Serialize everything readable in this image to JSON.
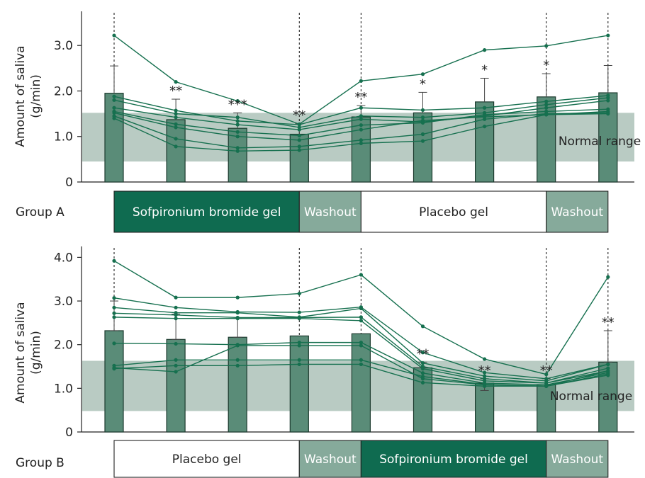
{
  "colors": {
    "bar_fill": "#5a8c78",
    "bar_stroke": "#1c3a2e",
    "line": "#16704f",
    "normal_band": "#b9cbc3",
    "sofpironium_box": "#0f6b50",
    "washout_box": "#86aa9b",
    "placebo_box": "#ffffff",
    "axis": "#222222"
  },
  "chart_data": [
    {
      "type": "bar",
      "group": "Group A",
      "ylabel": "Amount of saliva (g/min)",
      "ylabel_lines": [
        "Amount of saliva",
        "(g/min)"
      ],
      "yticks": [
        0,
        1.0,
        2.0,
        3.0
      ],
      "ytick_labels": [
        "0",
        "1.0",
        "2.0",
        "3.0"
      ],
      "ylim": [
        0,
        3.75
      ],
      "timepoints": 9,
      "vlines": [
        0,
        3,
        4,
        7
      ],
      "normal_range": {
        "low": 0.45,
        "high": 1.52,
        "label": "Normal range"
      },
      "bars": [
        1.95,
        1.37,
        1.18,
        1.05,
        1.43,
        1.52,
        1.76,
        1.87,
        1.96
      ],
      "error_upper": [
        2.55,
        1.82,
        1.52,
        1.28,
        1.68,
        1.97,
        2.28,
        2.38,
        2.56
      ],
      "significance": [
        "",
        "**",
        "***",
        "**",
        "**",
        "*",
        "*",
        "*",
        ""
      ],
      "series": [
        {
          "values": [
            3.22,
            2.2,
            1.78,
            1.27,
            2.22,
            2.37,
            2.9,
            2.99,
            3.22
          ]
        },
        {
          "values": [
            1.88,
            1.57,
            1.34,
            1.26,
            1.63,
            1.58,
            1.63,
            1.77,
            1.9
          ]
        },
        {
          "values": [
            1.8,
            1.5,
            1.42,
            1.2,
            1.45,
            1.42,
            1.52,
            1.7,
            1.85
          ]
        },
        {
          "values": [
            1.63,
            1.42,
            1.26,
            1.15,
            1.38,
            1.32,
            1.45,
            1.63,
            1.79
          ]
        },
        {
          "values": [
            1.55,
            1.27,
            1.1,
            1.02,
            1.25,
            1.3,
            1.48,
            1.55,
            1.6
          ]
        },
        {
          "values": [
            1.52,
            1.2,
            1.0,
            0.92,
            1.15,
            1.35,
            1.43,
            1.48,
            1.55
          ]
        },
        {
          "values": [
            1.45,
            0.95,
            0.75,
            0.78,
            0.92,
            1.05,
            1.38,
            1.5,
            1.52
          ]
        },
        {
          "values": [
            1.4,
            0.78,
            0.68,
            0.7,
            0.85,
            0.9,
            1.22,
            1.48,
            1.5
          ]
        }
      ],
      "phases": [
        {
          "label": "Sofpironium bromide gel",
          "kind": "sofpironium",
          "from": 0,
          "to": 3
        },
        {
          "label": "Washout",
          "kind": "washout",
          "from": 3,
          "to": 4
        },
        {
          "label": "Placebo gel",
          "kind": "placebo",
          "from": 4,
          "to": 7
        },
        {
          "label": "Washout",
          "kind": "washout",
          "from": 7,
          "to": 8
        }
      ]
    },
    {
      "type": "bar",
      "group": "Group B",
      "ylabel": "Amount of saliva (g/min)",
      "ylabel_lines": [
        "Amount of saliva",
        "(g/min)"
      ],
      "yticks": [
        0,
        1.0,
        2.0,
        3.0,
        4.0
      ],
      "ytick_labels": [
        "0",
        "1.0",
        "2.0",
        "3.0",
        "4.0"
      ],
      "ylim": [
        0,
        4.25
      ],
      "timepoints": 9,
      "vlines": [
        0,
        3,
        4,
        7
      ],
      "normal_range": {
        "low": 0.48,
        "high": 1.63,
        "label": "Normal range"
      },
      "bars": [
        2.32,
        2.12,
        2.17,
        2.2,
        2.25,
        1.47,
        1.12,
        1.08,
        1.6
      ],
      "error_upper": [
        3.0,
        2.7,
        2.6,
        2.2,
        2.25,
        1.6,
        1.22,
        1.22,
        2.32
      ],
      "error_lower": [
        2.32,
        2.12,
        2.17,
        2.2,
        2.25,
        1.47,
        0.95,
        1.08,
        1.6
      ],
      "significance": [
        "",
        "",
        "",
        "",
        "",
        "**",
        "**",
        "**",
        "**"
      ],
      "series": [
        {
          "values": [
            3.92,
            3.08,
            3.08,
            3.17,
            3.6,
            2.42,
            1.67,
            1.32,
            3.55
          ]
        },
        {
          "values": [
            3.07,
            2.85,
            2.75,
            2.74,
            2.86,
            1.82,
            1.36,
            1.22,
            1.55
          ]
        },
        {
          "values": [
            2.85,
            2.73,
            2.73,
            2.63,
            2.83,
            1.58,
            1.28,
            1.17,
            1.55
          ]
        },
        {
          "values": [
            2.72,
            2.68,
            2.62,
            2.62,
            2.63,
            1.5,
            1.22,
            1.12,
            1.46
          ]
        },
        {
          "values": [
            2.63,
            2.6,
            2.6,
            2.6,
            2.55,
            1.45,
            1.17,
            1.12,
            1.4
          ]
        },
        {
          "values": [
            2.03,
            2.02,
            2.0,
            2.05,
            2.05,
            1.35,
            1.12,
            1.08,
            1.36
          ]
        },
        {
          "values": [
            1.52,
            1.65,
            1.65,
            1.65,
            1.65,
            1.27,
            1.09,
            1.05,
            1.4
          ]
        },
        {
          "values": [
            1.47,
            1.38,
            1.98,
            1.98,
            1.98,
            1.22,
            1.08,
            1.05,
            1.33
          ]
        },
        {
          "values": [
            1.45,
            1.52,
            1.52,
            1.55,
            1.55,
            1.13,
            1.05,
            1.05,
            1.3
          ]
        }
      ],
      "phases": [
        {
          "label": "Placebo gel",
          "kind": "placebo",
          "from": 0,
          "to": 3
        },
        {
          "label": "Washout",
          "kind": "washout",
          "from": 3,
          "to": 4
        },
        {
          "label": "Sofpironium bromide gel",
          "kind": "sofpironium",
          "from": 4,
          "to": 7
        },
        {
          "label": "Washout",
          "kind": "washout",
          "from": 7,
          "to": 8
        }
      ]
    }
  ]
}
